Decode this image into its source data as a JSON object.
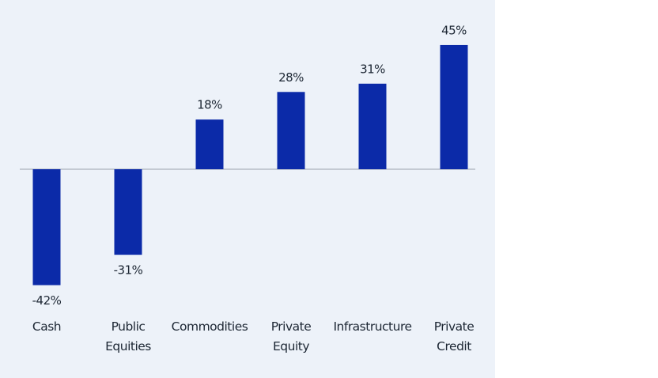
{
  "chart_data": {
    "type": "bar",
    "categories": [
      "Cash",
      "Public Equities",
      "Commodities",
      "Private Equity",
      "Infrastructure",
      "Private Credit"
    ],
    "values": [
      -42,
      -31,
      18,
      28,
      31,
      45
    ],
    "value_labels": [
      "-42%",
      "-31%",
      "18%",
      "28%",
      "31%",
      "45%"
    ],
    "color": "#0b2aa8"
  }
}
